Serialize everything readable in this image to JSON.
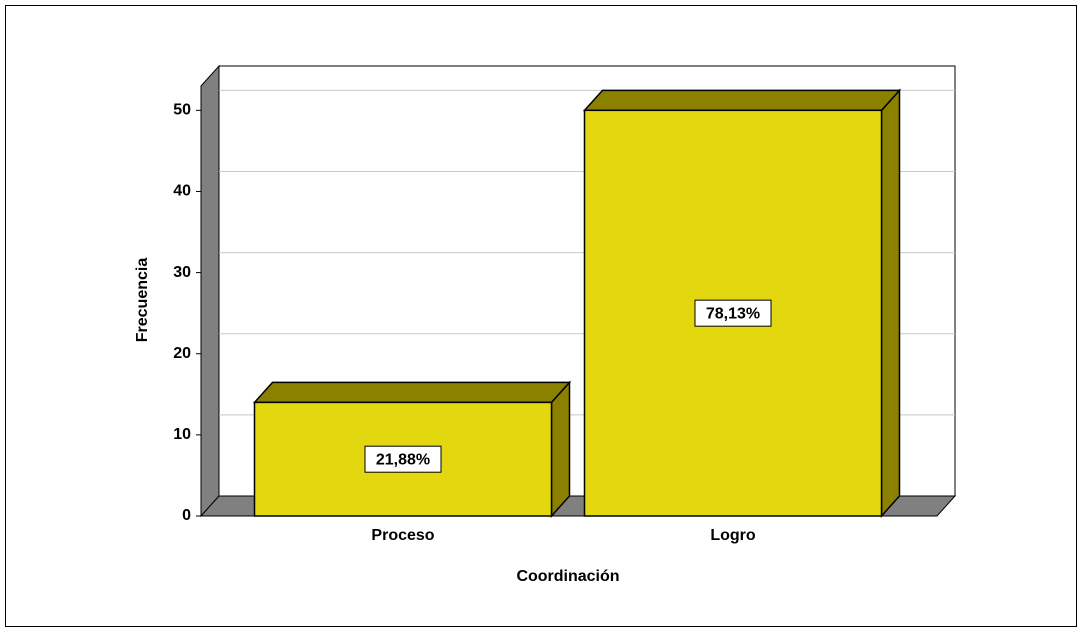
{
  "chart_data": {
    "type": "bar3d",
    "categories": [
      "Proceso",
      "Logro"
    ],
    "values": [
      14,
      50
    ],
    "bar_labels": [
      "21,88%",
      "78,13%"
    ],
    "color": "#e3d70f",
    "x_label": "Coordinación",
    "y_label": "Frecuencia",
    "ylim": [
      0,
      53
    ],
    "yticks": [
      0,
      10,
      20,
      30,
      40,
      50
    ],
    "grid": true
  }
}
